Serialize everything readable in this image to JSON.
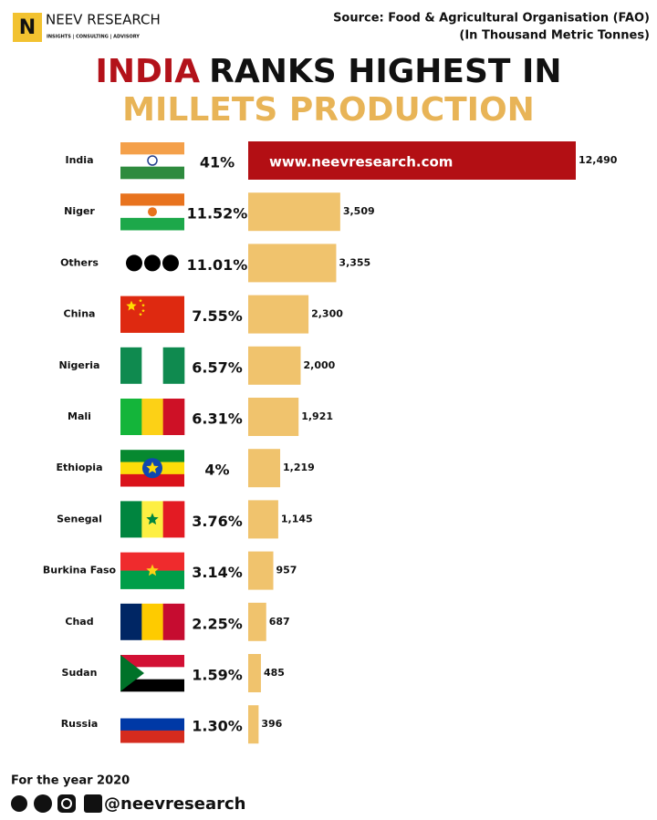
{
  "brand": {
    "name": "NEEV RESEARCH",
    "tagline": "INSIGHTS | CONSULTING | ADVISORY"
  },
  "source": [
    "Source: Food & Agricultural Organisation (FAO)",
    "(In Thousand Metric Tonnes)"
  ],
  "chart_data": {
    "type": "bar",
    "orientation": "horizontal",
    "title_highlight": "INDIA",
    "title_rest": "RANKS HIGHEST IN",
    "title_line2": "MILLETS PRODUCTION",
    "categories": [
      "India",
      "Niger",
      "Others",
      "China",
      "Nigeria",
      "Mali",
      "Ethiopia",
      "Senegal",
      "Burkina Faso",
      "Chad",
      "Sudan",
      "Russia"
    ],
    "values": [
      12490,
      3509,
      3355,
      2300,
      2000,
      1921,
      1219,
      1145,
      957,
      687,
      485,
      396
    ],
    "value_labels": [
      "12,490",
      "3,509",
      "3,355",
      "2,300",
      "2,000",
      "1,921",
      "1,219",
      "1,145",
      "957",
      "687",
      "485",
      "396"
    ],
    "shares": {
      "values": [
        41,
        11.52,
        11.01,
        7.55,
        6.57,
        6.31,
        4,
        3.76,
        3.14,
        2.25,
        1.59,
        1.3
      ],
      "value_labels": [
        "41%",
        "11.52%",
        "11.01%",
        "7.55%",
        "6.57%",
        "6.31%",
        "4%",
        "3.76%",
        "3.14%",
        "2.25%",
        "1.59%",
        "1.30%"
      ]
    },
    "colors": [
      "#b30f14",
      "#f0c36d",
      "#f0c36d",
      "#f0c36d",
      "#f0c36d",
      "#f0c36d",
      "#f0c36d",
      "#f0c36d",
      "#f0c36d",
      "#f0c36d",
      "#f0c36d",
      "#f0c36d"
    ],
    "watermark": "www.neevresearch.com"
  },
  "footer": {
    "note": "For the year 2020",
    "handle": "@neevresearch"
  }
}
